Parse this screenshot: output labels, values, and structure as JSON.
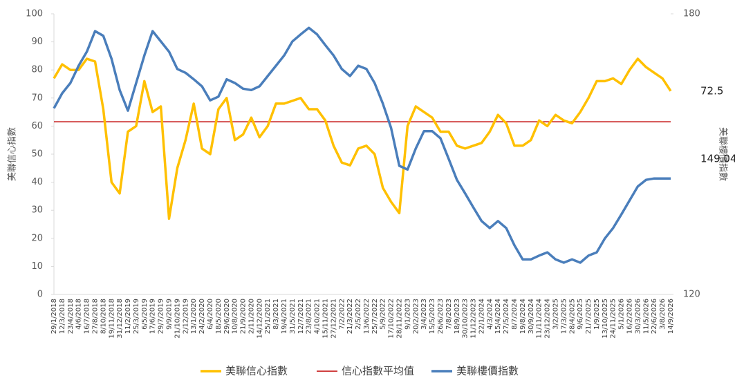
{
  "chart_data": {
    "type": "line",
    "categories": [
      "29/1/2018",
      "12/3/2018",
      "23/4/2018",
      "4/6/2018",
      "16/7/2018",
      "27/8/2018",
      "8/10/2018",
      "19/11/2018",
      "31/12/2018",
      "11/2/2019",
      "25/3/2019",
      "6/5/2019",
      "17/6/2019",
      "29/7/2019",
      "9/9/2019",
      "21/10/2019",
      "2/12/2019",
      "13/1/2020",
      "24/2/2020",
      "6/4/2020",
      "18/5/2020",
      "29/6/2020",
      "10/8/2020",
      "21/9/2020",
      "2/11/2020",
      "14/12/2020",
      "25/1/2021",
      "8/3/2021",
      "19/4/2021",
      "31/5/2021",
      "12/7/2021",
      "23/8/2021",
      "4/10/2021",
      "15/11/2021",
      "27/12/2021",
      "7/2/2022",
      "21/3/2022",
      "2/5/2022",
      "13/6/2022",
      "25/7/2022",
      "5/9/2022",
      "17/10/2022",
      "28/11/2022",
      "9/1/2023",
      "20/2/2023",
      "3/4/2023",
      "15/5/2023",
      "26/6/2023",
      "7/8/2023",
      "18/9/2023",
      "30/10/2023",
      "11/12/2023",
      "22/1/2024",
      "4/3/2024",
      "15/4/2024",
      "27/5/2024",
      "8/7/2024",
      "19/8/2024",
      "30/9/2024",
      "11/11/2024",
      "23/12/2024",
      "3/2/2025",
      "17/3/2025",
      "28/4/2025",
      "9/6/2025",
      "21/7/2025",
      "1/9/2025",
      "13/10/2025",
      "24/11/2025",
      "5/1/2026",
      "16/2/2026",
      "30/3/2026",
      "11/5/2026",
      "22/6/2026",
      "3/8/2026",
      "14/9/2026"
    ],
    "series": [
      {
        "name": "美聯信心指數",
        "color": "#ffc000",
        "axis": "y",
        "values": [
          77,
          82,
          80,
          80,
          84,
          83,
          66,
          40,
          36,
          58,
          60,
          76,
          65,
          67,
          27,
          45,
          55,
          68,
          52,
          50,
          66,
          70,
          55,
          57,
          63,
          56,
          60,
          68,
          68,
          69,
          70,
          66,
          66,
          62,
          53,
          47,
          46,
          52,
          53,
          50,
          38,
          33,
          29,
          60,
          67,
          65,
          63,
          58,
          58,
          53,
          52,
          53,
          54,
          58,
          64,
          61,
          53,
          53,
          55,
          62,
          60,
          64,
          62,
          61,
          65,
          70,
          76,
          76,
          77,
          75,
          80,
          84,
          81,
          79,
          77,
          72.5
        ]
      },
      {
        "name": "美聯樓價指數",
        "color": "#4a7ebb",
        "axis": "y2",
        "values": [
          159.8,
          163,
          165.2,
          168.9,
          171.9,
          176.3,
          175.3,
          170.4,
          163.7,
          159.3,
          165.2,
          171.1,
          176.3,
          174.1,
          171.9,
          168.2,
          167.4,
          166,
          164.5,
          161.5,
          162.3,
          166,
          165.2,
          164,
          163.7,
          164.5,
          166.7,
          168.9,
          171.1,
          174.1,
          175.6,
          177,
          175.6,
          173.3,
          171.1,
          168.2,
          166.7,
          168.9,
          168.2,
          165.2,
          160.8,
          155.6,
          147.5,
          146.7,
          151.2,
          154.9,
          154.9,
          153.4,
          149,
          144.5,
          141.6,
          138.6,
          135.7,
          134.2,
          135.7,
          134.2,
          130.5,
          127.5,
          127.5,
          128.3,
          129,
          127.5,
          126.8,
          127.5,
          126.8,
          128.3,
          129,
          132,
          134.2,
          137.1,
          140.1,
          143.1,
          144.5,
          144.8,
          144.8,
          144.8
        ]
      }
    ],
    "reference_line": {
      "name": "信心指數平均值",
      "color": "#c00000",
      "value": 61.5
    },
    "annotations": [
      "72.5",
      "149.04"
    ],
    "ylabel": "美聯信心指數",
    "y2label": "美聯樓價指數",
    "ylim": [
      0,
      100
    ],
    "yticks": [
      0,
      10,
      20,
      30,
      40,
      50,
      60,
      70,
      80,
      90,
      100
    ],
    "y2lim": [
      120,
      180
    ],
    "y2ticks": [
      120,
      180
    ],
    "grid": false
  }
}
